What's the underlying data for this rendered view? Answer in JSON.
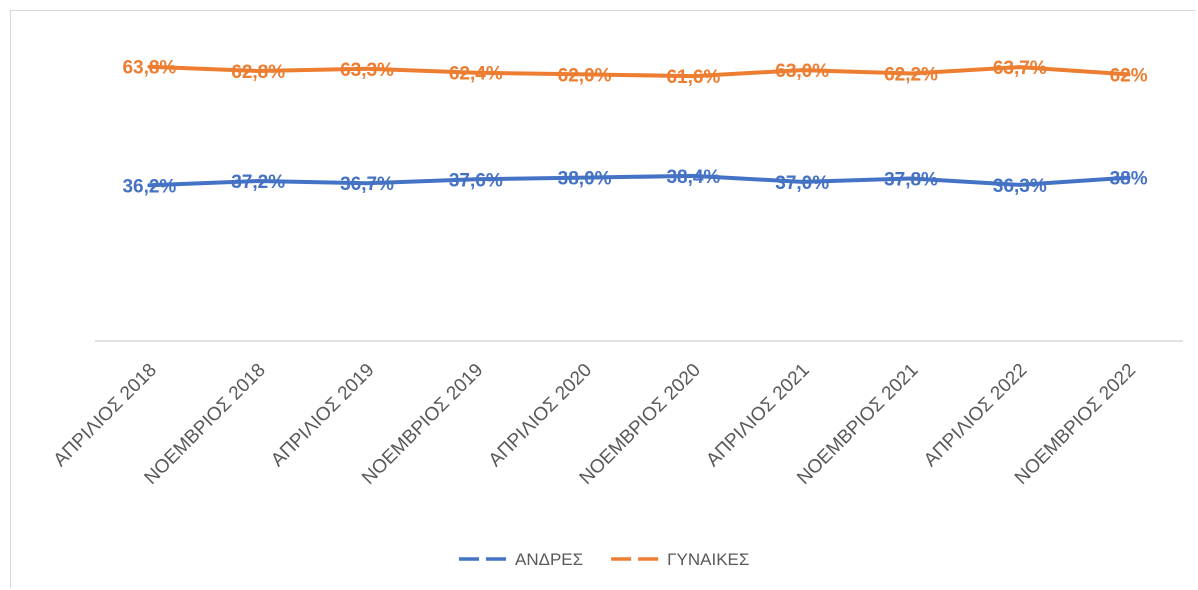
{
  "chart_data": {
    "type": "line",
    "title": "",
    "xlabel": "",
    "ylabel": "",
    "grid": false,
    "legend_position": "bottom",
    "categories": [
      "ΑΠΡΙΛΙΟΣ 2018",
      "ΝΟΕΜΒΡΙΟΣ 2018",
      "ΑΠΡΙΛΙΟΣ 2019",
      "ΝΟΕΜΒΡΙΟΣ 2019",
      "ΑΠΡΙΛΙΟΣ 2020",
      "ΝΟΕΜΒΡΙΟΣ 2020",
      "ΑΠΡΙΛΙΟΣ 2021",
      "ΝΟΕΜΒΡΙΟΣ 2021",
      "ΑΠΡΙΛΙΟΣ 2022",
      "ΝΟΕΜΒΡΙΟΣ 2022"
    ],
    "ylim": [
      0,
      70
    ],
    "series": [
      {
        "name": "ΑΝΔΡΕΣ",
        "color": "#4472C4",
        "values": [
          36.2,
          37.2,
          36.7,
          37.6,
          38.0,
          38.4,
          37.0,
          37.8,
          36.3,
          38
        ],
        "labels": [
          "36,2%",
          "37,2%",
          "36,7%",
          "37,6%",
          "38,0%",
          "38,4%",
          "37,0%",
          "37,8%",
          "36,3%",
          "38%"
        ]
      },
      {
        "name": "ΓΥΝΑΙΚΕΣ",
        "color": "#ED7D31",
        "values": [
          63.8,
          62.8,
          63.3,
          62.4,
          62.0,
          61.6,
          63.0,
          62.2,
          63.7,
          62
        ],
        "labels": [
          "63,8%",
          "62,8%",
          "63,3%",
          "62,4%",
          "62,0%",
          "61,6%",
          "63,0%",
          "62,2%",
          "63,7%",
          "62%"
        ]
      }
    ]
  }
}
